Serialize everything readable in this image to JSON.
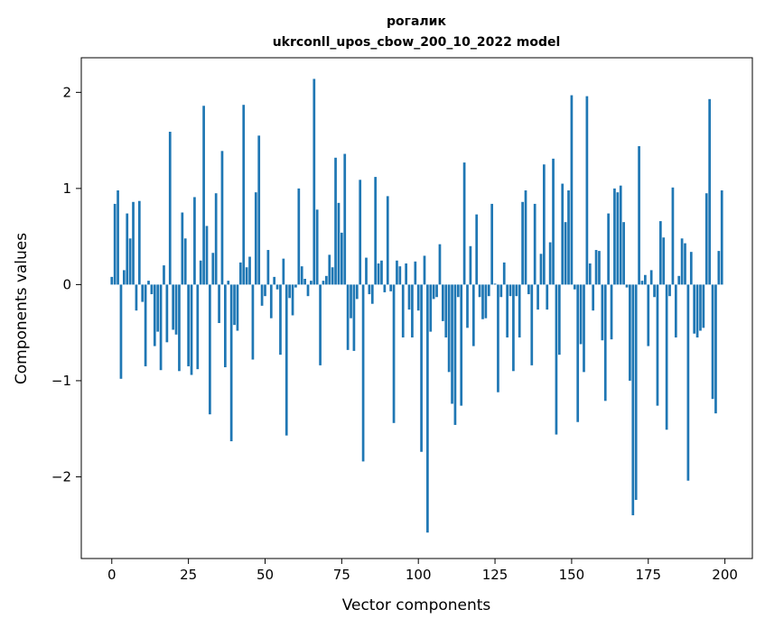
{
  "chart_data": {
    "type": "bar",
    "title_line1": "рогалик",
    "title_line2": "ukrconll_upos_cbow_200_10_2022 model",
    "xlabel": "Vector components",
    "ylabel": "Components values",
    "xlim": [
      -9.95,
      208.95
    ],
    "ylim": [
      -2.85,
      2.36
    ],
    "xticks": [
      0,
      25,
      50,
      75,
      100,
      125,
      150,
      175,
      200
    ],
    "xtick_labels": [
      "0",
      "25",
      "50",
      "75",
      "100",
      "125",
      "150",
      "175",
      "200"
    ],
    "yticks": [
      -2,
      -1,
      0,
      1,
      2
    ],
    "ytick_labels": [
      "−2",
      "−1",
      "0",
      "1",
      "2"
    ],
    "grid": false,
    "bar_color": "#1f77b4",
    "x": [
      0,
      1,
      2,
      3,
      4,
      5,
      6,
      7,
      8,
      9,
      10,
      11,
      12,
      13,
      14,
      15,
      16,
      17,
      18,
      19,
      20,
      21,
      22,
      23,
      24,
      25,
      26,
      27,
      28,
      29,
      30,
      31,
      32,
      33,
      34,
      35,
      36,
      37,
      38,
      39,
      40,
      41,
      42,
      43,
      44,
      45,
      46,
      47,
      48,
      49,
      50,
      51,
      52,
      53,
      54,
      55,
      56,
      57,
      58,
      59,
      60,
      61,
      62,
      63,
      64,
      65,
      66,
      67,
      68,
      69,
      70,
      71,
      72,
      73,
      74,
      75,
      76,
      77,
      78,
      79,
      80,
      81,
      82,
      83,
      84,
      85,
      86,
      87,
      88,
      89,
      90,
      91,
      92,
      93,
      94,
      95,
      96,
      97,
      98,
      99,
      100,
      101,
      102,
      103,
      104,
      105,
      106,
      107,
      108,
      109,
      110,
      111,
      112,
      113,
      114,
      115,
      116,
      117,
      118,
      119,
      120,
      121,
      122,
      123,
      124,
      125,
      126,
      127,
      128,
      129,
      130,
      131,
      132,
      133,
      134,
      135,
      136,
      137,
      138,
      139,
      140,
      141,
      142,
      143,
      144,
      145,
      146,
      147,
      148,
      149,
      150,
      151,
      152,
      153,
      154,
      155,
      156,
      157,
      158,
      159,
      160,
      161,
      162,
      163,
      164,
      165,
      166,
      167,
      168,
      169,
      170,
      171,
      172,
      173,
      174,
      175,
      176,
      177,
      178,
      179,
      180,
      181,
      182,
      183,
      184,
      185,
      186,
      187,
      188,
      189,
      190,
      191,
      192,
      193,
      194,
      195,
      196,
      197,
      198,
      199
    ],
    "values": [
      0.08,
      0.84,
      0.98,
      -0.98,
      0.15,
      0.74,
      0.48,
      0.86,
      -0.27,
      0.87,
      -0.18,
      -0.85,
      0.04,
      -0.1,
      -0.64,
      -0.49,
      -0.89,
      0.2,
      -0.6,
      1.59,
      -0.47,
      -0.52,
      -0.9,
      0.75,
      0.48,
      -0.85,
      -0.94,
      0.91,
      -0.88,
      0.25,
      1.86,
      0.61,
      -1.35,
      0.33,
      0.95,
      -0.4,
      1.39,
      -0.86,
      0.04,
      -1.63,
      -0.42,
      -0.48,
      0.23,
      1.87,
      0.18,
      0.29,
      -0.78,
      0.96,
      1.55,
      -0.22,
      -0.12,
      0.36,
      -0.35,
      0.08,
      -0.05,
      -0.73,
      0.27,
      -1.57,
      -0.14,
      -0.32,
      -0.03,
      1.0,
      0.19,
      0.06,
      -0.12,
      0.04,
      2.14,
      0.78,
      -0.84,
      0.04,
      0.09,
      0.31,
      0.18,
      1.32,
      0.85,
      0.54,
      1.36,
      -0.68,
      -0.35,
      -0.69,
      -0.15,
      1.09,
      -1.84,
      0.28,
      -0.1,
      -0.2,
      1.12,
      0.22,
      0.25,
      -0.08,
      0.92,
      -0.07,
      -1.44,
      0.25,
      0.19,
      -0.55,
      0.22,
      -0.26,
      -0.55,
      0.24,
      -0.27,
      -1.74,
      0.3,
      -2.58,
      -0.49,
      -0.15,
      -0.13,
      0.42,
      -0.38,
      -0.55,
      -0.91,
      -1.24,
      -1.46,
      -0.13,
      -1.26,
      1.27,
      -0.45,
      0.4,
      -0.64,
      0.73,
      -0.13,
      -0.36,
      -0.35,
      -0.12,
      0.84,
      0.01,
      -1.12,
      -0.13,
      0.23,
      -0.55,
      -0.12,
      -0.9,
      -0.12,
      -0.55,
      0.86,
      0.98,
      -0.1,
      -0.84,
      0.84,
      -0.26,
      0.32,
      1.25,
      -0.26,
      0.44,
      1.31,
      -1.56,
      -0.73,
      1.05,
      0.65,
      0.98,
      1.97,
      -0.05,
      -1.43,
      -0.62,
      -0.91,
      1.96,
      0.22,
      -0.27,
      0.36,
      0.35,
      -0.58,
      -1.21,
      0.74,
      -0.57,
      1.0,
      0.96,
      1.03,
      0.65,
      -0.03,
      -1.0,
      -2.4,
      -2.24,
      1.44,
      0.04,
      0.1,
      -0.64,
      0.15,
      -0.13,
      -1.26,
      0.66,
      0.49,
      -1.51,
      -0.12,
      1.01,
      -0.55,
      0.09,
      0.48,
      0.43,
      -2.04,
      0.34,
      -0.51,
      -0.55,
      -0.48,
      -0.45,
      0.95,
      1.93,
      -1.19,
      -1.34,
      0.35,
      0.98
    ]
  }
}
